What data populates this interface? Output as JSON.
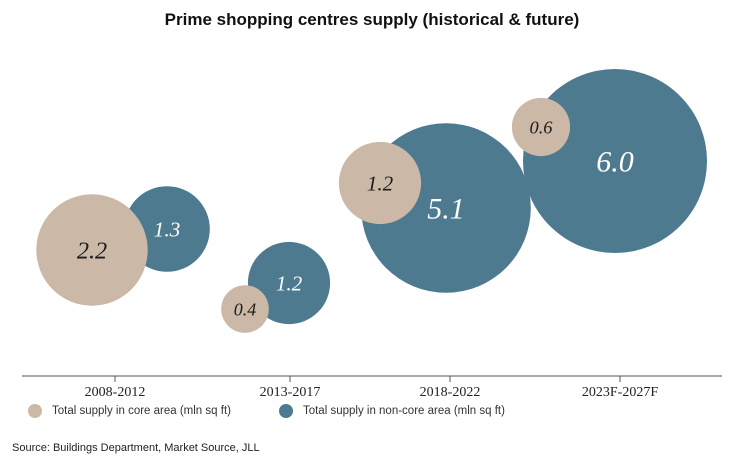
{
  "chart_data": {
    "type": "bubble",
    "title": "Prime shopping centres supply (historical & future)",
    "categories": [
      "2008-2012",
      "2013-2017",
      "2018-2022",
      "2023F-2027F"
    ],
    "series": [
      {
        "name": "Total supply in core area (mln sq ft)",
        "color": "#cbb8a6",
        "values": [
          2.2,
          0.4,
          1.2,
          0.6
        ],
        "labels": [
          "2.2",
          "0.4",
          "1.2",
          "0.6"
        ]
      },
      {
        "name": "Total supply in non-core area (mln sq ft)",
        "color": "#4d7a8f",
        "values": [
          1.3,
          1.2,
          5.1,
          6.0
        ],
        "labels": [
          "1.3",
          "1.2",
          "5.1",
          "6.0"
        ]
      }
    ],
    "grid": false,
    "legend_position": "bottom-left",
    "source": "Source: Buildings Department, Market Source, JLL"
  }
}
